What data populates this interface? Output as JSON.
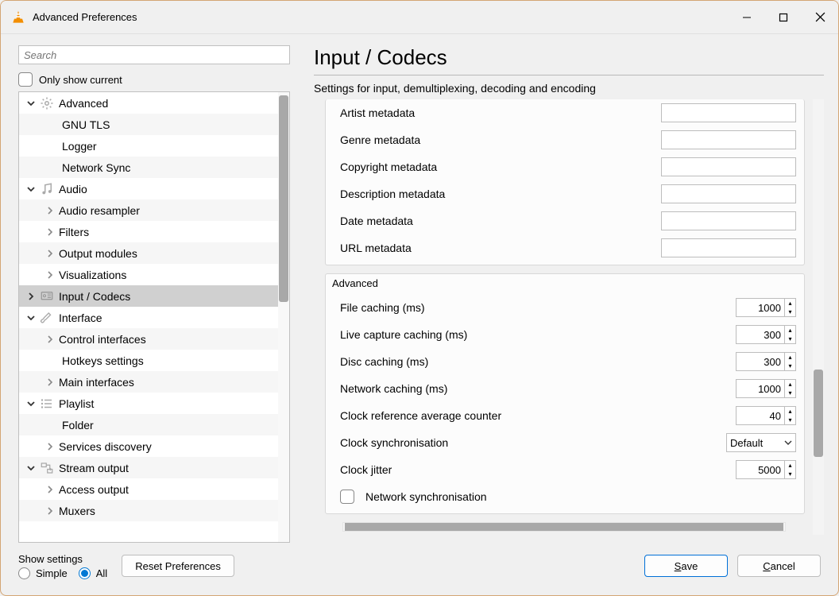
{
  "window": {
    "title": "Advanced Preferences"
  },
  "left": {
    "search_placeholder": "Search",
    "only_current_label": "Only show current",
    "only_current_checked": false
  },
  "tree": [
    {
      "label": "Advanced",
      "depth": 0,
      "expanded": true,
      "has_children": true,
      "icon": "gear",
      "stripe": false
    },
    {
      "label": "GNU TLS",
      "depth": 1,
      "has_children": false,
      "stripe": true
    },
    {
      "label": "Logger",
      "depth": 1,
      "has_children": false,
      "stripe": false
    },
    {
      "label": "Network Sync",
      "depth": 1,
      "has_children": false,
      "stripe": true
    },
    {
      "label": "Audio",
      "depth": 0,
      "expanded": true,
      "has_children": true,
      "icon": "note",
      "stripe": false
    },
    {
      "label": "Audio resampler",
      "depth": 1,
      "has_children": true,
      "expanded": false,
      "stripe": true
    },
    {
      "label": "Filters",
      "depth": 1,
      "has_children": true,
      "expanded": false,
      "stripe": false
    },
    {
      "label": "Output modules",
      "depth": 1,
      "has_children": true,
      "expanded": false,
      "stripe": true
    },
    {
      "label": "Visualizations",
      "depth": 1,
      "has_children": true,
      "expanded": false,
      "stripe": false
    },
    {
      "label": "Input / Codecs",
      "depth": 0,
      "has_children": true,
      "expanded": false,
      "icon": "disc",
      "selected": true,
      "stripe": true
    },
    {
      "label": "Interface",
      "depth": 0,
      "expanded": true,
      "has_children": true,
      "icon": "brush",
      "stripe": false
    },
    {
      "label": "Control interfaces",
      "depth": 1,
      "has_children": true,
      "expanded": false,
      "stripe": true
    },
    {
      "label": "Hotkeys settings",
      "depth": 1,
      "has_children": false,
      "stripe": false
    },
    {
      "label": "Main interfaces",
      "depth": 1,
      "has_children": true,
      "expanded": false,
      "stripe": true
    },
    {
      "label": "Playlist",
      "depth": 0,
      "expanded": true,
      "has_children": true,
      "icon": "list",
      "stripe": false
    },
    {
      "label": "Folder",
      "depth": 1,
      "has_children": false,
      "stripe": true
    },
    {
      "label": "Services discovery",
      "depth": 1,
      "has_children": true,
      "expanded": false,
      "stripe": false
    },
    {
      "label": "Stream output",
      "depth": 0,
      "expanded": true,
      "has_children": true,
      "icon": "stream",
      "stripe": true
    },
    {
      "label": "Access output",
      "depth": 1,
      "has_children": true,
      "expanded": false,
      "stripe": false
    },
    {
      "label": "Muxers",
      "depth": 1,
      "has_children": true,
      "expanded": false,
      "stripe": true
    }
  ],
  "page": {
    "title": "Input / Codecs",
    "subtitle": "Settings for input, demultiplexing, decoding and encoding"
  },
  "metadata_fields": [
    {
      "label": "Artist metadata",
      "value": ""
    },
    {
      "label": "Genre metadata",
      "value": ""
    },
    {
      "label": "Copyright metadata",
      "value": ""
    },
    {
      "label": "Description metadata",
      "value": ""
    },
    {
      "label": "Date metadata",
      "value": ""
    },
    {
      "label": "URL metadata",
      "value": ""
    }
  ],
  "advanced": {
    "legend": "Advanced",
    "fields": [
      {
        "label": "File caching (ms)",
        "type": "spin",
        "value": "1000"
      },
      {
        "label": "Live capture caching (ms)",
        "type": "spin",
        "value": "300"
      },
      {
        "label": "Disc caching (ms)",
        "type": "spin",
        "value": "300"
      },
      {
        "label": "Network caching (ms)",
        "type": "spin",
        "value": "1000"
      },
      {
        "label": "Clock reference average counter",
        "type": "spin",
        "value": "40"
      },
      {
        "label": "Clock synchronisation",
        "type": "select",
        "value": "Default"
      },
      {
        "label": "Clock jitter",
        "type": "spin",
        "value": "5000"
      },
      {
        "label": "Network synchronisation",
        "type": "checkbox",
        "checked": false
      }
    ]
  },
  "footer": {
    "group_label": "Show settings",
    "radio_simple": "Simple",
    "radio_all": "All",
    "selected": "all",
    "reset": "Reset Preferences",
    "save": "Save",
    "cancel": "Cancel"
  }
}
